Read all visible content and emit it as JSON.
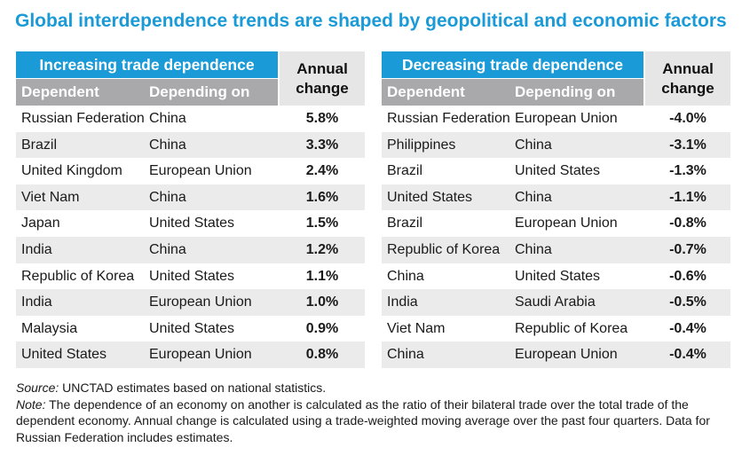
{
  "title": "Global interdependence trends are shaped by geopolitical and economic factors",
  "colors": {
    "accent": "#1a9ad6",
    "subheader": "#a9a9ac",
    "row_shade": "#ebebec"
  },
  "tables": [
    {
      "group_header": "Increasing trade dependence",
      "col_dependent": "Dependent",
      "col_depending_on": "Depending on",
      "col_annual": "Annual change",
      "rows": [
        {
          "dependent": "Russian Federation",
          "depending_on": "China",
          "change": "5.8%"
        },
        {
          "dependent": "Brazil",
          "depending_on": "China",
          "change": "3.3%"
        },
        {
          "dependent": "United Kingdom",
          "depending_on": "European Union",
          "change": "2.4%"
        },
        {
          "dependent": "Viet Nam",
          "depending_on": "China",
          "change": "1.6%"
        },
        {
          "dependent": "Japan",
          "depending_on": "United States",
          "change": "1.5%"
        },
        {
          "dependent": "India",
          "depending_on": "China",
          "change": "1.2%"
        },
        {
          "dependent": "Republic of Korea",
          "depending_on": "United States",
          "change": "1.1%"
        },
        {
          "dependent": "India",
          "depending_on": "European Union",
          "change": "1.0%"
        },
        {
          "dependent": "Malaysia",
          "depending_on": "United States",
          "change": "0.9%"
        },
        {
          "dependent": "United States",
          "depending_on": "European Union",
          "change": "0.8%"
        }
      ]
    },
    {
      "group_header": "Decreasing trade dependence",
      "col_dependent": "Dependent",
      "col_depending_on": "Depending on",
      "col_annual": "Annual change",
      "rows": [
        {
          "dependent": "Russian Federation",
          "depending_on": "European Union",
          "change": "-4.0%"
        },
        {
          "dependent": "Philippines",
          "depending_on": "China",
          "change": "-3.1%"
        },
        {
          "dependent": "Brazil",
          "depending_on": "United States",
          "change": "-1.3%"
        },
        {
          "dependent": "United States",
          "depending_on": "China",
          "change": "-1.1%"
        },
        {
          "dependent": "Brazil",
          "depending_on": "European Union",
          "change": "-0.8%"
        },
        {
          "dependent": "Republic of Korea",
          "depending_on": "China",
          "change": "-0.7%"
        },
        {
          "dependent": "China",
          "depending_on": "United States",
          "change": "-0.6%"
        },
        {
          "dependent": "India",
          "depending_on": "Saudi Arabia",
          "change": "-0.5%"
        },
        {
          "dependent": "Viet Nam",
          "depending_on": "Republic of Korea",
          "change": "-0.4%"
        },
        {
          "dependent": "China",
          "depending_on": "European Union",
          "change": "-0.4%"
        }
      ]
    }
  ],
  "source_label": "Source:",
  "source_text": " UNCTAD estimates based on national statistics.",
  "note_label": "Note:",
  "note_text": " The dependence of an economy on another is calculated as the ratio of their bilateral trade over the total trade of the dependent economy. Annual change is calculated using a trade-weighted moving average over the past four quarters. Data for Russian Federation includes estimates."
}
